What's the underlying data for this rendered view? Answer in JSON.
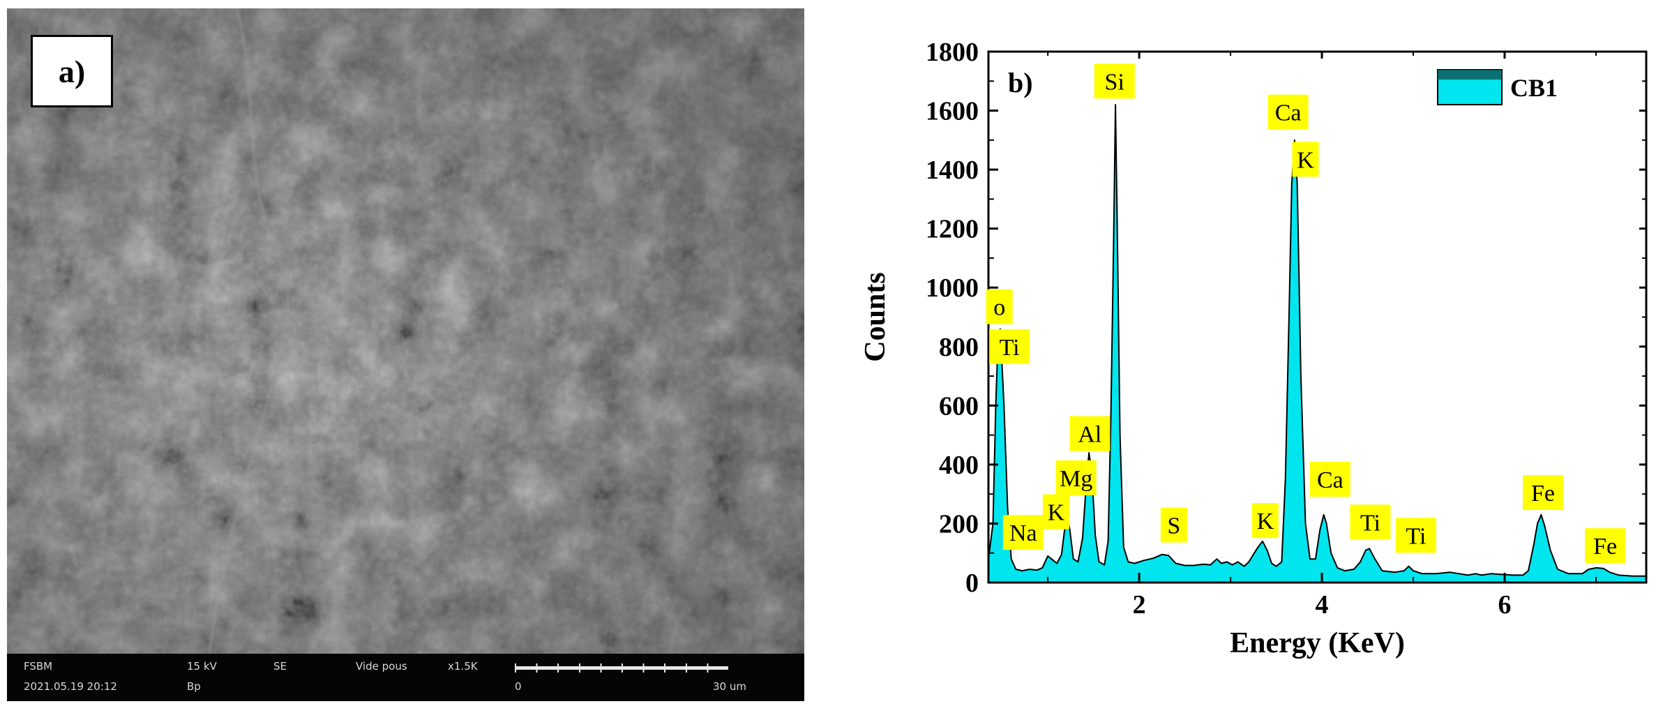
{
  "sem": {
    "panel_label": "a)",
    "info": {
      "lab": "FSBM",
      "datetime": "2021.05.19 20:12",
      "voltage": "15 kV",
      "detector": "SE",
      "extra": "Bp",
      "vacuum": "Vide pous",
      "magnification": "x1.5K",
      "scale_min": "0",
      "scale_max": "30 um"
    }
  },
  "chart_data": {
    "type": "area",
    "panel_label": "b)",
    "xlabel": "Energy (KeV)",
    "ylabel": "Counts",
    "xlim": [
      0.35,
      7.55
    ],
    "ylim": [
      0,
      1800
    ],
    "x_ticks": [
      2,
      4,
      6
    ],
    "y_ticks": [
      0,
      200,
      400,
      600,
      800,
      1000,
      1200,
      1400,
      1600,
      1800
    ],
    "legend": {
      "entries": [
        "CB1"
      ],
      "position": "top-right"
    },
    "series": [
      {
        "name": "CB1",
        "fill_color": "#00e5ee",
        "stroke_color": "#000000",
        "points": [
          [
            0.35,
            80
          ],
          [
            0.4,
            200
          ],
          [
            0.43,
            600
          ],
          [
            0.45,
            780
          ],
          [
            0.48,
            860
          ],
          [
            0.52,
            600
          ],
          [
            0.56,
            250
          ],
          [
            0.6,
            80
          ],
          [
            0.65,
            45
          ],
          [
            0.72,
            40
          ],
          [
            0.8,
            45
          ],
          [
            0.88,
            42
          ],
          [
            0.94,
            50
          ],
          [
            1.0,
            90
          ],
          [
            1.04,
            80
          ],
          [
            1.1,
            65
          ],
          [
            1.15,
            95
          ],
          [
            1.18,
            170
          ],
          [
            1.21,
            220
          ],
          [
            1.24,
            180
          ],
          [
            1.28,
            80
          ],
          [
            1.33,
            70
          ],
          [
            1.38,
            150
          ],
          [
            1.42,
            330
          ],
          [
            1.45,
            440
          ],
          [
            1.48,
            380
          ],
          [
            1.52,
            160
          ],
          [
            1.56,
            70
          ],
          [
            1.62,
            60
          ],
          [
            1.66,
            140
          ],
          [
            1.69,
            560
          ],
          [
            1.72,
            1150
          ],
          [
            1.74,
            1620
          ],
          [
            1.76,
            1200
          ],
          [
            1.79,
            500
          ],
          [
            1.83,
            120
          ],
          [
            1.88,
            70
          ],
          [
            1.95,
            65
          ],
          [
            2.05,
            75
          ],
          [
            2.15,
            82
          ],
          [
            2.25,
            95
          ],
          [
            2.32,
            92
          ],
          [
            2.4,
            65
          ],
          [
            2.5,
            58
          ],
          [
            2.6,
            58
          ],
          [
            2.7,
            62
          ],
          [
            2.78,
            60
          ],
          [
            2.85,
            80
          ],
          [
            2.9,
            65
          ],
          [
            2.96,
            70
          ],
          [
            3.02,
            60
          ],
          [
            3.08,
            70
          ],
          [
            3.15,
            55
          ],
          [
            3.2,
            70
          ],
          [
            3.25,
            95
          ],
          [
            3.3,
            120
          ],
          [
            3.35,
            140
          ],
          [
            3.4,
            110
          ],
          [
            3.45,
            65
          ],
          [
            3.5,
            55
          ],
          [
            3.56,
            70
          ],
          [
            3.6,
            350
          ],
          [
            3.64,
            900
          ],
          [
            3.67,
            1350
          ],
          [
            3.7,
            1500
          ],
          [
            3.73,
            1350
          ],
          [
            3.77,
            700
          ],
          [
            3.82,
            200
          ],
          [
            3.87,
            80
          ],
          [
            3.93,
            80
          ],
          [
            3.98,
            180
          ],
          [
            4.02,
            230
          ],
          [
            4.05,
            200
          ],
          [
            4.1,
            100
          ],
          [
            4.17,
            50
          ],
          [
            4.25,
            40
          ],
          [
            4.35,
            45
          ],
          [
            4.42,
            70
          ],
          [
            4.48,
            110
          ],
          [
            4.52,
            115
          ],
          [
            4.58,
            80
          ],
          [
            4.66,
            40
          ],
          [
            4.8,
            35
          ],
          [
            4.9,
            40
          ],
          [
            4.95,
            55
          ],
          [
            5.0,
            40
          ],
          [
            5.1,
            30
          ],
          [
            5.25,
            30
          ],
          [
            5.4,
            35
          ],
          [
            5.5,
            30
          ],
          [
            5.6,
            25
          ],
          [
            5.68,
            30
          ],
          [
            5.75,
            25
          ],
          [
            5.85,
            30
          ],
          [
            5.95,
            28
          ],
          [
            6.1,
            25
          ],
          [
            6.2,
            25
          ],
          [
            6.26,
            40
          ],
          [
            6.32,
            130
          ],
          [
            6.36,
            200
          ],
          [
            6.4,
            230
          ],
          [
            6.44,
            190
          ],
          [
            6.5,
            110
          ],
          [
            6.58,
            45
          ],
          [
            6.7,
            30
          ],
          [
            6.85,
            30
          ],
          [
            6.92,
            45
          ],
          [
            7.0,
            50
          ],
          [
            7.08,
            48
          ],
          [
            7.15,
            35
          ],
          [
            7.25,
            25
          ],
          [
            7.4,
            22
          ],
          [
            7.55,
            22
          ]
        ]
      }
    ],
    "annotations": [
      {
        "text": "o",
        "x": 0.47,
        "y": 935
      },
      {
        "text": "Ti",
        "x": 0.58,
        "y": 800
      },
      {
        "text": "Al",
        "x": 1.46,
        "y": 505
      },
      {
        "text": "Mg",
        "x": 1.31,
        "y": 355
      },
      {
        "text": "K",
        "x": 1.09,
        "y": 240
      },
      {
        "text": "Na",
        "x": 0.73,
        "y": 170
      },
      {
        "text": "Si",
        "x": 1.73,
        "y": 1700
      },
      {
        "text": "S",
        "x": 2.38,
        "y": 195
      },
      {
        "text": "K",
        "x": 3.38,
        "y": 210
      },
      {
        "text": "Ca",
        "x": 3.63,
        "y": 1595
      },
      {
        "text": "K",
        "x": 3.82,
        "y": 1435
      },
      {
        "text": "Ca",
        "x": 4.09,
        "y": 350
      },
      {
        "text": "Ti",
        "x": 4.53,
        "y": 205
      },
      {
        "text": "Ti",
        "x": 5.03,
        "y": 160
      },
      {
        "text": "Fe",
        "x": 6.42,
        "y": 305
      },
      {
        "text": "Fe",
        "x": 7.1,
        "y": 125
      }
    ]
  }
}
